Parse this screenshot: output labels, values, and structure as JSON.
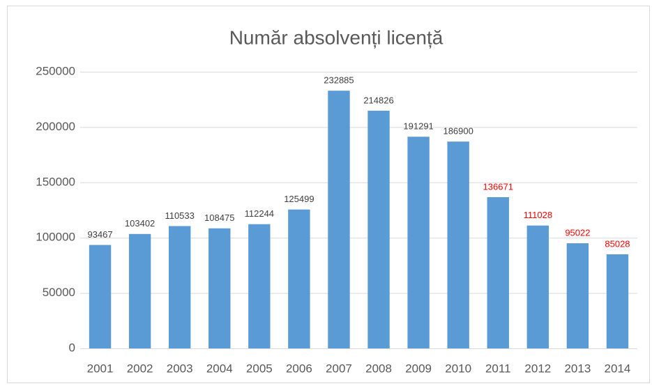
{
  "chart_data": {
    "type": "bar",
    "title": "Număr absolvenți licență",
    "categories": [
      "2001",
      "2002",
      "2003",
      "2004",
      "2005",
      "2006",
      "2007",
      "2008",
      "2009",
      "2010",
      "2011",
      "2012",
      "2013",
      "2014"
    ],
    "values": [
      93467,
      103402,
      110533,
      108475,
      112244,
      125499,
      232885,
      214826,
      191291,
      186900,
      136671,
      111028,
      95022,
      85028
    ],
    "color": "#5b9bd5",
    "label_colors": [
      "#404040",
      "#404040",
      "#404040",
      "#404040",
      "#404040",
      "#404040",
      "#404040",
      "#404040",
      "#404040",
      "#404040",
      "#ff0000",
      "#ff0000",
      "#ff0000",
      "#ff0000"
    ],
    "ylim": [
      0,
      250000
    ],
    "yticks": [
      0,
      50000,
      100000,
      150000,
      200000,
      250000
    ],
    "grid": true
  }
}
